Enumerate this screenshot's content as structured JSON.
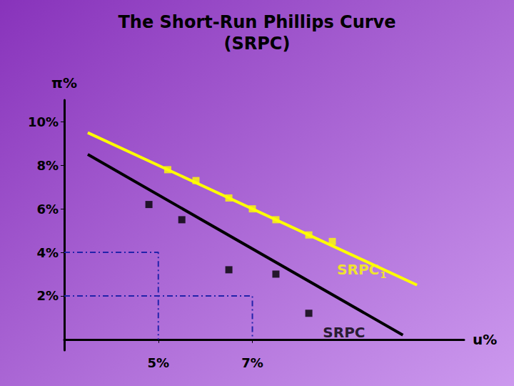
{
  "chart_data": {
    "type": "line",
    "title": "The Short-Run Phillips Curve",
    "subtitle": "(SRPC)",
    "xlabel": "u%",
    "ylabel": "π%",
    "xlim": [
      3,
      11.5
    ],
    "ylim": [
      -0.5,
      11
    ],
    "xticks": [
      {
        "value": 5,
        "label": "5%"
      },
      {
        "value": 7,
        "label": "7%"
      }
    ],
    "yticks": [
      {
        "value": 2,
        "label": "2%"
      },
      {
        "value": 4,
        "label": "4%"
      },
      {
        "value": 6,
        "label": "6%"
      },
      {
        "value": 8,
        "label": "8%"
      },
      {
        "value": 10,
        "label": "10%"
      }
    ],
    "grid": false,
    "series": [
      {
        "type": "line",
        "line_style": "dashdot",
        "color": "#2222AA",
        "x": [
          3,
          5,
          5
        ],
        "values": [
          4,
          4,
          0
        ]
      },
      {
        "type": "line",
        "line_style": "dashdot",
        "color": "#2222AA",
        "x": [
          3,
          7,
          7
        ],
        "values": [
          2,
          2,
          0
        ]
      },
      {
        "type": "line",
        "line_style": "solid",
        "color": "#000000",
        "x": [
          3.5,
          10.2
        ],
        "values": [
          8.5,
          0.2
        ]
      },
      {
        "type": "line",
        "line_style": "solid",
        "color": "#FFFF00",
        "x": [
          3.5,
          10.5
        ],
        "values": [
          9.5,
          2.5
        ]
      },
      {
        "type": "scatter",
        "marker": "square",
        "color": "#000000",
        "x": [
          4.8,
          5.5,
          6.5,
          7.5,
          8.2
        ],
        "values": [
          6.2,
          5.5,
          3.2,
          3.0,
          1.2
        ]
      },
      {
        "type": "scatter",
        "marker": "square",
        "color": "#FFFF00",
        "x": [
          5.2,
          5.8,
          6.5,
          7.0,
          7.5,
          8.2,
          8.7
        ],
        "values": [
          7.8,
          7.3,
          6.5,
          6.0,
          5.5,
          4.8,
          4.5
        ]
      }
    ],
    "annotations": [
      {
        "text": "SRPC",
        "x": 8.5,
        "y": 0,
        "color": "#000000"
      },
      {
        "text": "SRPC",
        "subscript": "1",
        "x": 8.8,
        "y": 3.2,
        "color": "#FFFF00"
      }
    ]
  }
}
